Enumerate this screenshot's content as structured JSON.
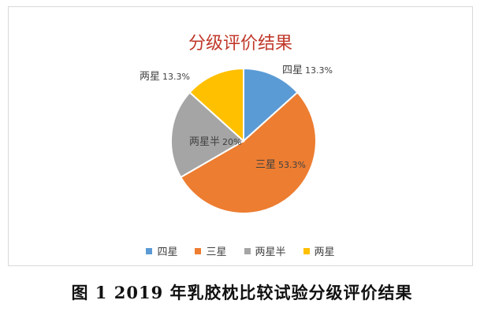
{
  "chart_data": {
    "type": "pie",
    "title": "分级评价结果",
    "slices": [
      {
        "name": "四星",
        "value": 13.3,
        "label_pct": "13.3%",
        "color": "#5b9bd5"
      },
      {
        "name": "三星",
        "value": 53.3,
        "label_pct": "53.3%",
        "color": "#ed7d31"
      },
      {
        "name": "两星半",
        "value": 20,
        "label_pct": "20%",
        "color": "#a5a5a5"
      },
      {
        "name": "两星",
        "value": 13.3,
        "label_pct": "13.3%",
        "color": "#ffc000"
      }
    ],
    "legend_position": "bottom"
  },
  "caption": "图 1 2019 年乳胶枕比较试验分级评价结果"
}
